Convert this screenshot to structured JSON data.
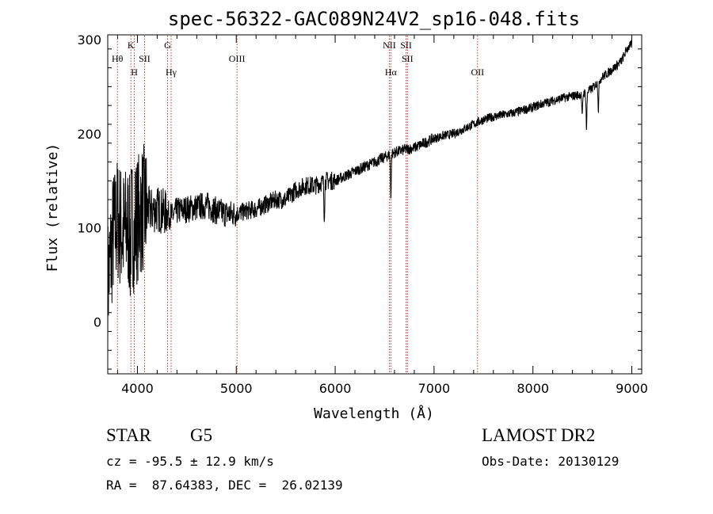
{
  "chart_data": {
    "type": "line",
    "title": "spec-56322-GAC089N24V2_sp16-048.fits",
    "xlabel": "Wavelength (Å)",
    "ylabel": "Flux (relative)",
    "xlim": [
      3700,
      9100
    ],
    "ylim": [
      -55,
      305
    ],
    "x_ticks": [
      4000,
      5000,
      6000,
      7000,
      8000,
      9000
    ],
    "y_ticks": [
      0,
      100,
      200,
      300
    ],
    "x_tick_labels": [
      "4000",
      "5000",
      "6000",
      "7000",
      "8000",
      "9000"
    ],
    "y_tick_labels": [
      "0",
      "100",
      "200",
      "300"
    ],
    "grid": false,
    "series": [
      {
        "color": "#000000",
        "x": [
          3700,
          3750,
          3800,
          3850,
          3900,
          3950,
          4000,
          4050,
          4100,
          4150,
          4200,
          4250,
          4300,
          4350,
          4400,
          4500,
          4600,
          4700,
          4800,
          4900,
          5000,
          5100,
          5200,
          5300,
          5400,
          5500,
          5600,
          5700,
          5800,
          5900,
          6000,
          6100,
          6200,
          6300,
          6400,
          6500,
          6600,
          6700,
          6800,
          6900,
          7000,
          7100,
          7200,
          7300,
          7400,
          7500,
          7600,
          7700,
          7800,
          7900,
          8000,
          8100,
          8200,
          8300,
          8400,
          8500,
          8600,
          8700,
          8800,
          8900,
          8950,
          9000
        ],
        "y": [
          40,
          90,
          110,
          95,
          100,
          105,
          110,
          120,
          120,
          118,
          120,
          118,
          115,
          112,
          118,
          120,
          122,
          124,
          118,
          115,
          115,
          118,
          120,
          125,
          130,
          130,
          140,
          145,
          145,
          150,
          150,
          155,
          160,
          165,
          170,
          175,
          180,
          183,
          185,
          190,
          195,
          198,
          200,
          205,
          210,
          215,
          218,
          220,
          222,
          225,
          228,
          232,
          235,
          238,
          240,
          242,
          248,
          260,
          268,
          278,
          290,
          295
        ]
      }
    ],
    "absorption_features": [
      {
        "x": 3925,
        "depth": 30
      },
      {
        "x": 3970,
        "depth": 30
      },
      {
        "x": 5890,
        "depth": 35
      },
      {
        "x": 6563,
        "depth": 45
      },
      {
        "x": 8498,
        "depth": 25
      },
      {
        "x": 8542,
        "depth": 40
      },
      {
        "x": 8662,
        "depth": 30
      }
    ],
    "line_markers": [
      {
        "label": "Hθ",
        "x": 3798,
        "row": 2
      },
      {
        "label": "K",
        "x": 3934,
        "row": 1
      },
      {
        "label": "H",
        "x": 3969,
        "row": 3
      },
      {
        "label": "SII",
        "x": 4072,
        "row": 2
      },
      {
        "label": "G",
        "x": 4305,
        "row": 1
      },
      {
        "label": "Hγ",
        "x": 4341,
        "row": 3
      },
      {
        "label": "OIII",
        "x": 5007,
        "row": 2
      },
      {
        "label": "NII",
        "x": 6548,
        "row": 1
      },
      {
        "label": "Hα",
        "x": 6563,
        "row": 3
      },
      {
        "label": "SII",
        "x": 6717,
        "row": 1
      },
      {
        "label": "SII",
        "x": 6731,
        "row": 2
      },
      {
        "label": "OII",
        "x": 7440,
        "row": 3
      }
    ]
  },
  "info": {
    "object_class": "STAR",
    "subclass": "G5",
    "survey": "LAMOST DR2",
    "cz": "cz = -95.5 ± 12.9 km/s",
    "obs_date": "Obs-Date: 20130129",
    "coords": "RA =  87.64383, DEC =  26.02139"
  }
}
